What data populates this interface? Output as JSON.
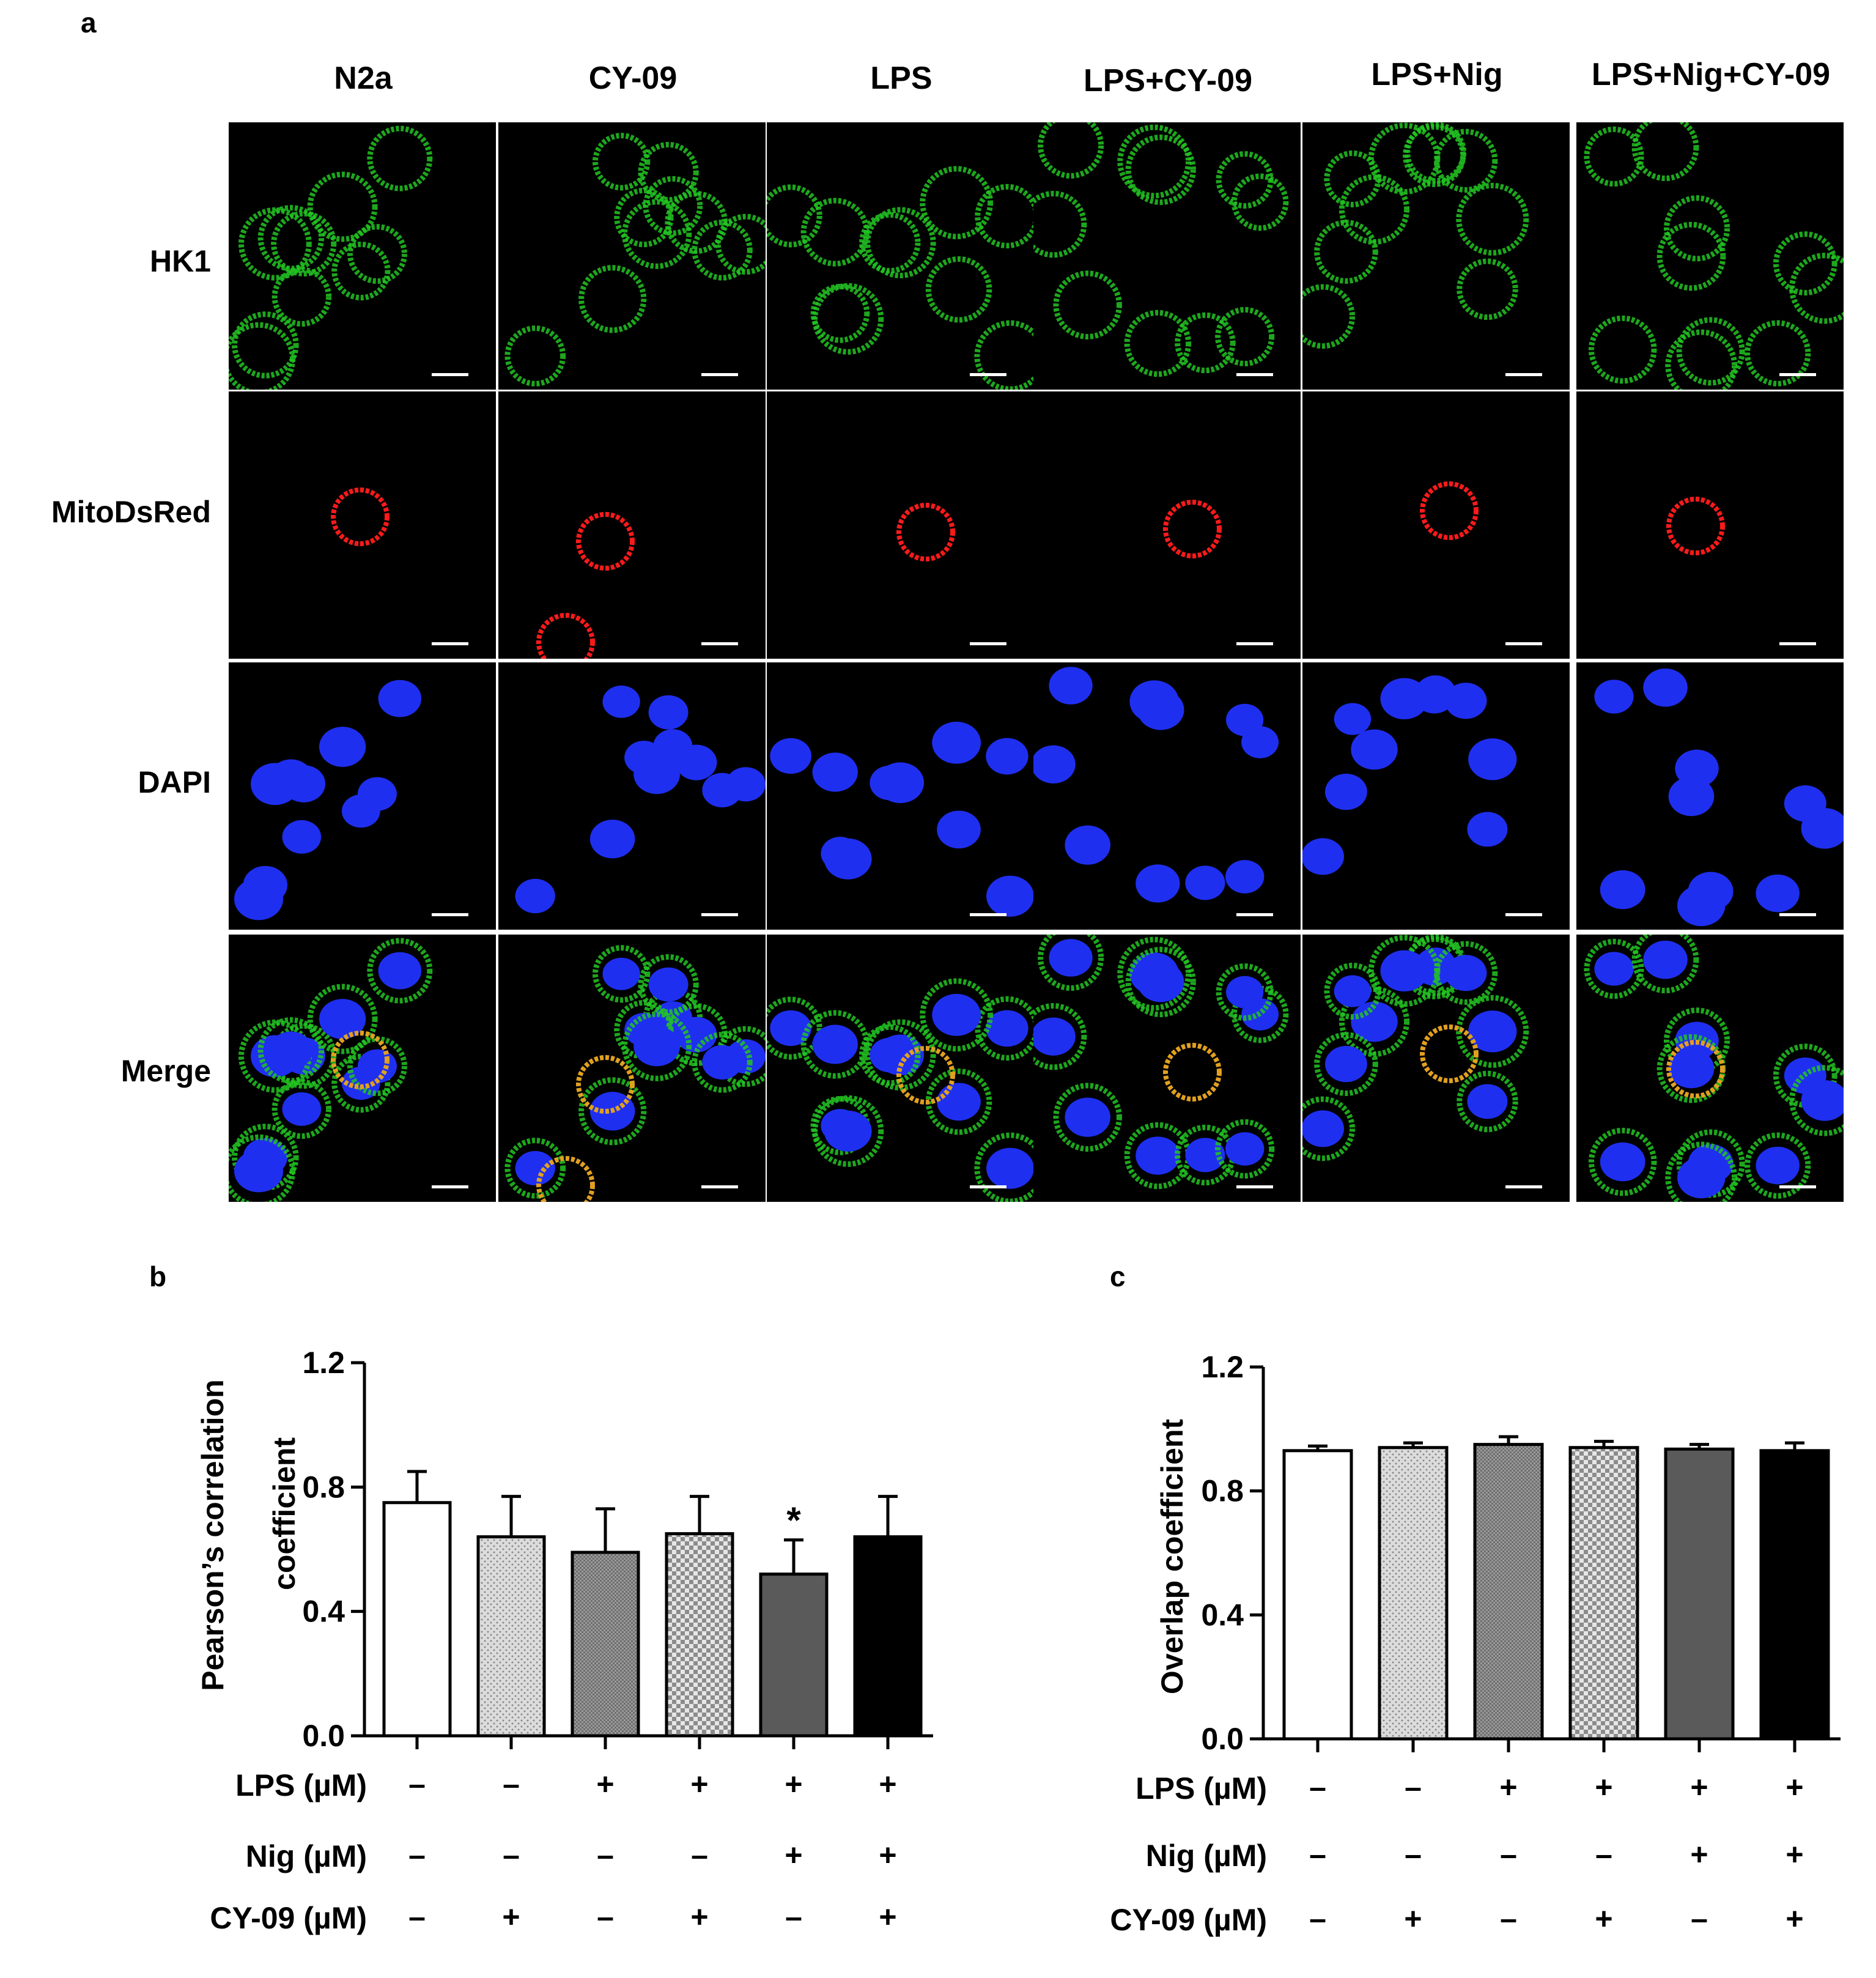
{
  "panel_a": {
    "letter": "a",
    "columns": [
      "N2a",
      "CY-09",
      "LPS",
      "LPS+CY-09",
      "LPS+Nig",
      "LPS+Nig+CY-09"
    ],
    "rows": [
      "HK1",
      "MitoDsRed",
      "DAPI",
      "Merge"
    ],
    "channel_colors": {
      "HK1": "#22c422",
      "MitoDsRed": "#ff1a1a",
      "DAPI": "#1f2ff0"
    }
  },
  "panel_b": {
    "letter": "b"
  },
  "panel_c": {
    "letter": "c"
  },
  "conditions": {
    "labels": [
      "LPS (µM)",
      "Nig (µM)",
      "CY-09 (µM)"
    ],
    "signs": [
      [
        "–",
        "–",
        "+",
        "+",
        "+",
        "+"
      ],
      [
        "–",
        "–",
        "–",
        "–",
        "+",
        "+"
      ],
      [
        "–",
        "+",
        "–",
        "+",
        "–",
        "+"
      ]
    ]
  },
  "chart_data": [
    {
      "type": "bar",
      "panel": "b",
      "ylabel": "Pearson's correlation coefficient",
      "ylabel_lines": [
        "Pearson’s correlation",
        "coefficient"
      ],
      "ylim": [
        0,
        1.2
      ],
      "yticks": [
        "0.0",
        "0.4",
        "0.8",
        "1.2"
      ],
      "values": [
        0.75,
        0.64,
        0.59,
        0.65,
        0.52,
        0.64
      ],
      "errors": [
        0.1,
        0.13,
        0.14,
        0.12,
        0.11,
        0.13
      ],
      "annotations": [
        "",
        "",
        "",
        "",
        "*",
        ""
      ],
      "fills": [
        "white",
        "dots",
        "dense",
        "checker",
        "#5a5a5a",
        "#000000"
      ]
    },
    {
      "type": "bar",
      "panel": "c",
      "ylabel": "Overlap coefficient",
      "ylim": [
        0,
        1.2
      ],
      "yticks": [
        "0.0",
        "0.4",
        "0.8",
        "1.2"
      ],
      "values": [
        0.93,
        0.94,
        0.95,
        0.94,
        0.935,
        0.93
      ],
      "errors": [
        0.015,
        0.015,
        0.025,
        0.02,
        0.015,
        0.025
      ],
      "annotations": [
        "",
        "",
        "",
        "",
        "",
        ""
      ],
      "fills": [
        "white",
        "dots",
        "dense",
        "checker",
        "#5a5a5a",
        "#000000"
      ]
    }
  ]
}
